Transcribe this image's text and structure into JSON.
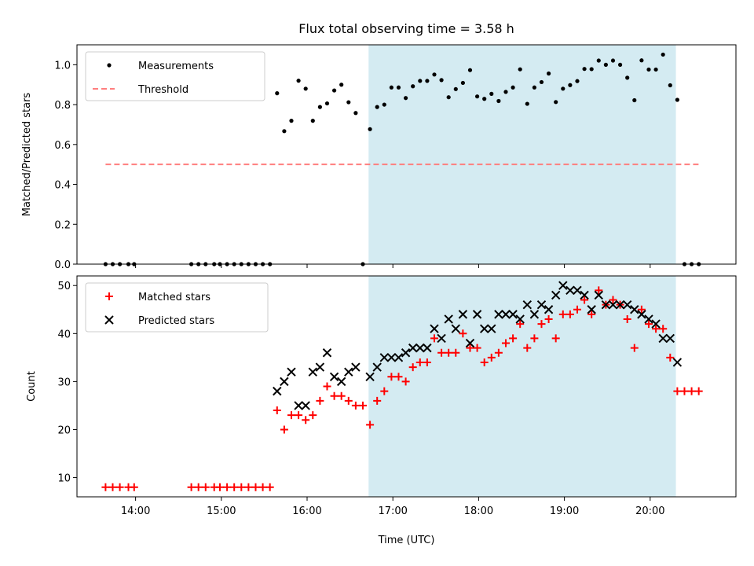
{
  "chart_data": [
    {
      "type": "scatter",
      "title": "Flux total observing time = 3.58 h",
      "xlabel": "",
      "ylabel": "Matched/Predicted stars",
      "xlim": [
        "13:19",
        "21:00"
      ],
      "ylim": [
        0,
        1.1
      ],
      "y_ticks": [
        0.0,
        0.2,
        0.4,
        0.6,
        0.8,
        1.0
      ],
      "y_tick_labels": [
        "0.0",
        "0.2",
        "0.4",
        "0.6",
        "0.8",
        "1.0"
      ],
      "legend_position": "top-left",
      "highlight_span": [
        "16:43",
        "20:18"
      ],
      "highlight_color": "#d4ebf2",
      "series": [
        {
          "name": "Measurements",
          "marker": "dot",
          "color": "#000000",
          "points": [
            [
              "13:39",
              0
            ],
            [
              "13:44",
              0
            ],
            [
              "13:49",
              0
            ],
            [
              "13:55",
              0
            ],
            [
              "13:59",
              0
            ],
            [
              "14:39",
              0
            ],
            [
              "14:44",
              0
            ],
            [
              "14:49",
              0
            ],
            [
              "14:55",
              0
            ],
            [
              "14:59",
              0
            ],
            [
              "15:04",
              0
            ],
            [
              "15:09",
              0
            ],
            [
              "15:14",
              0
            ],
            [
              "15:19",
              0
            ],
            [
              "15:24",
              0
            ],
            [
              "15:29",
              0
            ],
            [
              "15:34",
              0
            ],
            [
              "15:39",
              0.857
            ],
            [
              "15:44",
              0.667
            ],
            [
              "15:49",
              0.719
            ],
            [
              "15:54",
              0.92
            ],
            [
              "15:59",
              0.88
            ],
            [
              "16:04",
              0.719
            ],
            [
              "16:09",
              0.788
            ],
            [
              "16:14",
              0.806
            ],
            [
              "16:19",
              0.871
            ],
            [
              "16:24",
              0.9
            ],
            [
              "16:29",
              0.812
            ],
            [
              "16:34",
              0.758
            ],
            [
              "16:39",
              0
            ],
            [
              "16:44",
              0.677
            ],
            [
              "16:49",
              0.788
            ],
            [
              "16:54",
              0.8
            ],
            [
              "16:59",
              0.886
            ],
            [
              "17:04",
              0.886
            ],
            [
              "17:09",
              0.833
            ],
            [
              "17:14",
              0.892
            ],
            [
              "17:19",
              0.919
            ],
            [
              "17:24",
              0.919
            ],
            [
              "17:29",
              0.951
            ],
            [
              "17:34",
              0.923
            ],
            [
              "17:39",
              0.837
            ],
            [
              "17:44",
              0.878
            ],
            [
              "17:49",
              0.909
            ],
            [
              "17:54",
              0.973
            ],
            [
              "17:59",
              0.841
            ],
            [
              "18:04",
              0.829
            ],
            [
              "18:09",
              0.854
            ],
            [
              "18:14",
              0.818
            ],
            [
              "18:19",
              0.864
            ],
            [
              "18:24",
              0.886
            ],
            [
              "18:29",
              0.977
            ],
            [
              "18:34",
              0.804
            ],
            [
              "18:39",
              0.886
            ],
            [
              "18:44",
              0.913
            ],
            [
              "18:49",
              0.956
            ],
            [
              "18:54",
              0.813
            ],
            [
              "18:59",
              0.88
            ],
            [
              "19:04",
              0.898
            ],
            [
              "19:09",
              0.918
            ],
            [
              "19:14",
              0.979
            ],
            [
              "19:19",
              0.978
            ],
            [
              "19:24",
              1.021
            ],
            [
              "19:29",
              1.0
            ],
            [
              "19:34",
              1.021
            ],
            [
              "19:39",
              1.0
            ],
            [
              "19:44",
              0.935
            ],
            [
              "19:49",
              0.822
            ],
            [
              "19:54",
              1.022
            ],
            [
              "19:59",
              0.976
            ],
            [
              "20:04",
              0.976
            ],
            [
              "20:09",
              1.051
            ],
            [
              "20:14",
              0.897
            ],
            [
              "20:19",
              0.824
            ],
            [
              "20:24",
              0
            ],
            [
              "20:29",
              0
            ],
            [
              "20:34",
              0
            ]
          ]
        },
        {
          "name": "Threshold",
          "marker": "dashed-line",
          "color": "#ff7f7f",
          "points": [
            [
              "13:39",
              0.5
            ],
            [
              "20:34",
              0.5
            ]
          ]
        }
      ]
    },
    {
      "type": "scatter",
      "title": "",
      "xlabel": "Time (UTC)",
      "ylabel": "Count",
      "xlim": [
        "13:19",
        "21:00"
      ],
      "ylim": [
        6,
        52
      ],
      "y_ticks": [
        10,
        20,
        30,
        40,
        50
      ],
      "y_tick_labels": [
        "10",
        "20",
        "30",
        "40",
        "50"
      ],
      "x_ticks": [
        "14:00",
        "15:00",
        "16:00",
        "17:00",
        "18:00",
        "19:00",
        "20:00"
      ],
      "legend_position": "top-left",
      "highlight_span": [
        "16:43",
        "20:18"
      ],
      "highlight_color": "#d4ebf2",
      "series": [
        {
          "name": "Matched stars",
          "marker": "plus",
          "color": "#ff0000",
          "points": [
            [
              "13:39",
              8
            ],
            [
              "13:44",
              8
            ],
            [
              "13:49",
              8
            ],
            [
              "13:55",
              8
            ],
            [
              "13:59",
              8
            ],
            [
              "14:39",
              8
            ],
            [
              "14:44",
              8
            ],
            [
              "14:49",
              8
            ],
            [
              "14:55",
              8
            ],
            [
              "14:59",
              8
            ],
            [
              "15:04",
              8
            ],
            [
              "15:09",
              8
            ],
            [
              "15:14",
              8
            ],
            [
              "15:19",
              8
            ],
            [
              "15:24",
              8
            ],
            [
              "15:29",
              8
            ],
            [
              "15:34",
              8
            ],
            [
              "15:39",
              24
            ],
            [
              "15:44",
              20
            ],
            [
              "15:49",
              23
            ],
            [
              "15:54",
              23
            ],
            [
              "15:59",
              22
            ],
            [
              "16:04",
              23
            ],
            [
              "16:09",
              26
            ],
            [
              "16:14",
              29
            ],
            [
              "16:19",
              27
            ],
            [
              "16:24",
              27
            ],
            [
              "16:29",
              26
            ],
            [
              "16:34",
              25
            ],
            [
              "16:39",
              25
            ],
            [
              "16:44",
              21
            ],
            [
              "16:49",
              26
            ],
            [
              "16:54",
              28
            ],
            [
              "16:59",
              31
            ],
            [
              "17:04",
              31
            ],
            [
              "17:09",
              30
            ],
            [
              "17:14",
              33
            ],
            [
              "17:19",
              34
            ],
            [
              "17:24",
              34
            ],
            [
              "17:29",
              39
            ],
            [
              "17:34",
              36
            ],
            [
              "17:39",
              36
            ],
            [
              "17:44",
              36
            ],
            [
              "17:49",
              40
            ],
            [
              "17:54",
              37
            ],
            [
              "17:59",
              37
            ],
            [
              "18:04",
              34
            ],
            [
              "18:09",
              35
            ],
            [
              "18:14",
              36
            ],
            [
              "18:19",
              38
            ],
            [
              "18:24",
              39
            ],
            [
              "18:29",
              42
            ],
            [
              "18:34",
              37
            ],
            [
              "18:39",
              39
            ],
            [
              "18:44",
              42
            ],
            [
              "18:49",
              43
            ],
            [
              "18:54",
              39
            ],
            [
              "18:59",
              44
            ],
            [
              "19:04",
              44
            ],
            [
              "19:09",
              45
            ],
            [
              "19:14",
              47
            ],
            [
              "19:19",
              44
            ],
            [
              "19:24",
              49
            ],
            [
              "19:29",
              46
            ],
            [
              "19:34",
              47
            ],
            [
              "19:39",
              46
            ],
            [
              "19:44",
              43
            ],
            [
              "19:49",
              37
            ],
            [
              "19:54",
              45
            ],
            [
              "19:59",
              42
            ],
            [
              "20:04",
              41
            ],
            [
              "20:09",
              41
            ],
            [
              "20:14",
              35
            ],
            [
              "20:19",
              28
            ],
            [
              "20:24",
              28
            ],
            [
              "20:29",
              28
            ],
            [
              "20:34",
              28
            ]
          ]
        },
        {
          "name": "Predicted stars",
          "marker": "x",
          "color": "#000000",
          "points": [
            [
              "15:39",
              28
            ],
            [
              "15:44",
              30
            ],
            [
              "15:49",
              32
            ],
            [
              "15:54",
              25
            ],
            [
              "15:59",
              25
            ],
            [
              "16:04",
              32
            ],
            [
              "16:09",
              33
            ],
            [
              "16:14",
              36
            ],
            [
              "16:19",
              31
            ],
            [
              "16:24",
              30
            ],
            [
              "16:29",
              32
            ],
            [
              "16:34",
              33
            ],
            [
              "16:44",
              31
            ],
            [
              "16:49",
              33
            ],
            [
              "16:54",
              35
            ],
            [
              "16:59",
              35
            ],
            [
              "17:04",
              35
            ],
            [
              "17:09",
              36
            ],
            [
              "17:14",
              37
            ],
            [
              "17:19",
              37
            ],
            [
              "17:24",
              37
            ],
            [
              "17:29",
              41
            ],
            [
              "17:34",
              39
            ],
            [
              "17:39",
              43
            ],
            [
              "17:44",
              41
            ],
            [
              "17:49",
              44
            ],
            [
              "17:54",
              38
            ],
            [
              "17:59",
              44
            ],
            [
              "18:04",
              41
            ],
            [
              "18:09",
              41
            ],
            [
              "18:14",
              44
            ],
            [
              "18:19",
              44
            ],
            [
              "18:24",
              44
            ],
            [
              "18:29",
              43
            ],
            [
              "18:34",
              46
            ],
            [
              "18:39",
              44
            ],
            [
              "18:44",
              46
            ],
            [
              "18:49",
              45
            ],
            [
              "18:54",
              48
            ],
            [
              "18:59",
              50
            ],
            [
              "19:04",
              49
            ],
            [
              "19:09",
              49
            ],
            [
              "19:14",
              48
            ],
            [
              "19:19",
              45
            ],
            [
              "19:24",
              48
            ],
            [
              "19:29",
              46
            ],
            [
              "19:34",
              46
            ],
            [
              "19:39",
              46
            ],
            [
              "19:44",
              46
            ],
            [
              "19:49",
              45
            ],
            [
              "19:54",
              44
            ],
            [
              "19:59",
              43
            ],
            [
              "20:04",
              42
            ],
            [
              "20:09",
              39
            ],
            [
              "20:14",
              39
            ],
            [
              "20:19",
              34
            ]
          ]
        }
      ]
    }
  ]
}
